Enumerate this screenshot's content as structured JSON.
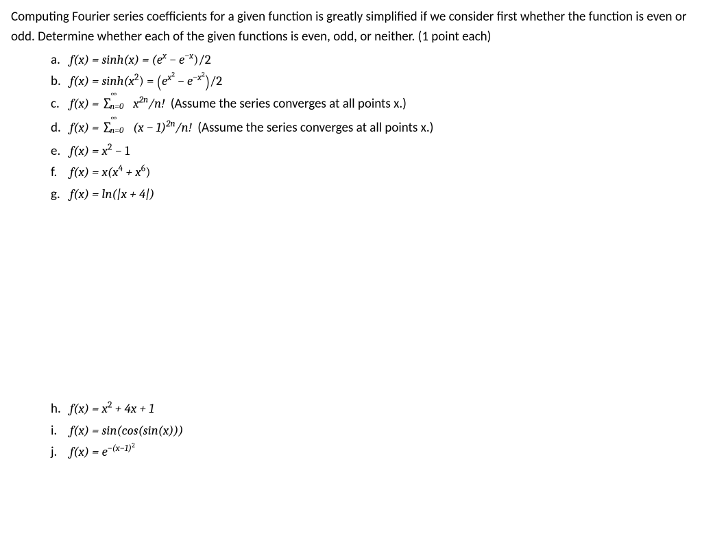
{
  "intro": "Computing Fourier series coefficients for a given function is greatly simplified if we consider first whether the function is even or odd. Determine whether each of the given functions is even, odd, or neither. (1 point each)",
  "items": {
    "a": {
      "letter": "a.",
      "lhs": "f(x) = sinh(x) = (e",
      "sup1": "x",
      "mid": " − e",
      "sup2": "−x",
      "rhs": ")/2"
    },
    "b": {
      "letter": "b.",
      "lhs": "f(x) = sinh(x",
      "argsup": "2",
      "mid1": ") = ",
      "lp": "(",
      "e1": "e",
      "sup1": "x",
      "sup1b": "2",
      "mid": " − e",
      "sup2": "−x",
      "sup2b": "2",
      "rp": ")",
      "rhs": "/2"
    },
    "c": {
      "letter": "c.",
      "lhs": "f(x) = ",
      "sigma_upper": "∞",
      "sigma_lower": "n=0",
      "body": " x",
      "sup": "2n",
      "tail": "/n!",
      "note": " (Assume the series converges at all points x.)"
    },
    "d": {
      "letter": "d.",
      "lhs": "f(x) = ",
      "sigma_upper": "∞",
      "sigma_lower": "n=0",
      "body1": " (x − 1)",
      "sup": "2n",
      "tail": "/n!",
      "note": " (Assume the series converges at all points x.)"
    },
    "e": {
      "letter": "e.",
      "text1": "f(x) = x",
      "sup": "2",
      "text2": " − 1"
    },
    "f": {
      "letter": "f.",
      "text1": "f(x) = x(x",
      "sup1": "4",
      "text2": " + x",
      "sup2": "6",
      "text3": ")"
    },
    "g": {
      "letter": "g.",
      "text": "f(x) = ln(|x + 4|)"
    },
    "h": {
      "letter": "h.",
      "text1": "f(x) = x",
      "sup": "2",
      "text2": " + 4x + 1"
    },
    "i": {
      "letter": "i.",
      "text": "f(x) = sin(cos(sin(x)))"
    },
    "j": {
      "letter": "j.",
      "text1": "f(x) = e",
      "sup": "−(x−1)",
      "sup2": "2"
    }
  }
}
